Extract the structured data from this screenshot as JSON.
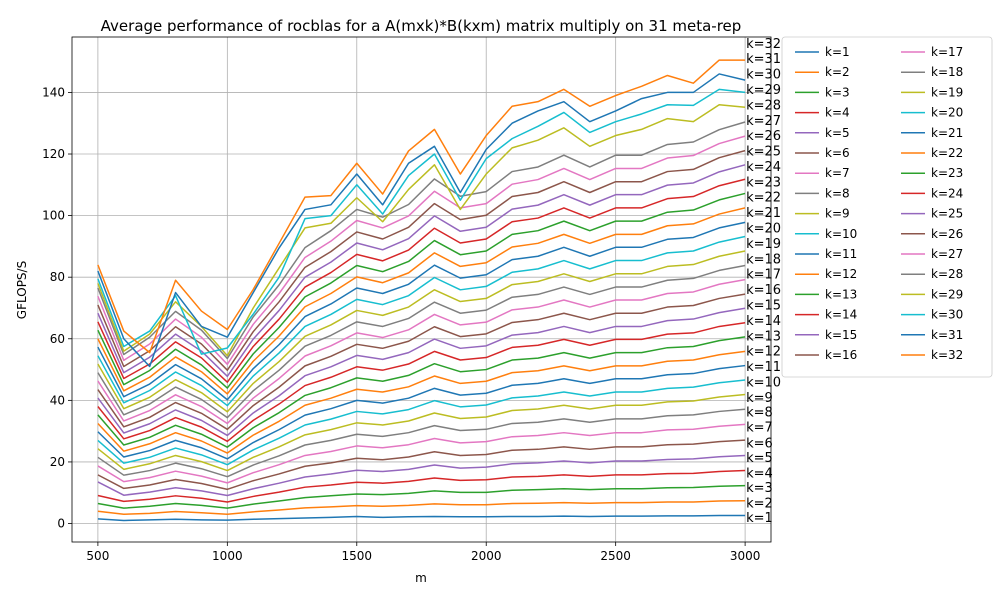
{
  "chart_data": {
    "type": "line",
    "title": "Average performance of rocblas for a A(mxk)*B(kxm) matrix multiply on 31 meta-rep",
    "xlabel": "m",
    "ylabel": "GFLOPS/S",
    "xlim": [
      400,
      3100
    ],
    "ylim": [
      -6,
      158
    ],
    "xticks": [
      500,
      1000,
      1500,
      2000,
      2500,
      3000
    ],
    "yticks": [
      0,
      20,
      40,
      60,
      80,
      100,
      120,
      140
    ],
    "grid": true,
    "legend_position": "outside-right",
    "legend_columns": 2,
    "x": [
      500,
      600,
      700,
      800,
      900,
      1000,
      1100,
      1200,
      1300,
      1400,
      1500,
      1600,
      1700,
      1800,
      1900,
      2000,
      2100,
      2200,
      2300,
      2400,
      2500,
      2600,
      2700,
      2800,
      2900,
      3000
    ],
    "palette": [
      "#1f77b4",
      "#ff7f0e",
      "#2ca02c",
      "#d62728",
      "#9467bd",
      "#8c564b",
      "#e377c2",
      "#7f7f7f",
      "#bcbd22",
      "#17becf"
    ],
    "end_labels": [
      "k=1",
      "k=2",
      "k=3",
      "k=4",
      "k=5",
      "k=6",
      "k=7",
      "k=8",
      "k=9",
      "k=10",
      "k=11",
      "k=12",
      "k=13",
      "k=14",
      "k=15",
      "k=16",
      "k=17",
      "k=18",
      "k=19",
      "k=20",
      "k=21",
      "k=22",
      "k=23",
      "k=24",
      "k=25",
      "k=26",
      "k=27",
      "k=28",
      "k=29",
      "k=30",
      "k=31",
      "k=32"
    ],
    "end_label_y": [
      1.8,
      6.5,
      11.5,
      16.2,
      21.3,
      26.0,
      31.2,
      36.0,
      40.8,
      45.8,
      50.8,
      55.8,
      60.8,
      65.8,
      70.8,
      75.8,
      80.8,
      85.8,
      90.8,
      95.8,
      100.8,
      105.8,
      110.8,
      115.8,
      120.8,
      125.8,
      130.8,
      135.8,
      140.8,
      145.8,
      150.8,
      155.8
    ],
    "series": [
      {
        "name": "k=1",
        "values": [
          1.5,
          1.0,
          1.2,
          1.4,
          1.2,
          1.1,
          1.4,
          1.6,
          1.8,
          2.0,
          2.3,
          2.0,
          2.2,
          2.3,
          2.2,
          2.2,
          2.3,
          2.3,
          2.4,
          2.3,
          2.4,
          2.4,
          2.5,
          2.5,
          2.6,
          2.6
        ]
      },
      {
        "name": "k=2",
        "values": [
          4.0,
          3.0,
          3.3,
          3.9,
          3.5,
          3.0,
          3.8,
          4.4,
          5.1,
          5.4,
          5.8,
          5.6,
          5.9,
          6.4,
          6.1,
          6.1,
          6.5,
          6.6,
          6.8,
          6.6,
          6.8,
          6.8,
          7.0,
          7.0,
          7.3,
          7.4
        ]
      },
      {
        "name": "k=3",
        "values": [
          6.5,
          5.0,
          5.6,
          6.5,
          5.9,
          5.0,
          6.3,
          7.3,
          8.4,
          9.0,
          9.6,
          9.4,
          9.8,
          10.6,
          10.1,
          10.1,
          10.8,
          11.0,
          11.3,
          11.0,
          11.3,
          11.3,
          11.6,
          11.7,
          12.1,
          12.3
        ]
      },
      {
        "name": "k=4",
        "values": [
          9.1,
          7.2,
          7.9,
          9.0,
          8.2,
          7.0,
          8.8,
          10.2,
          11.8,
          12.5,
          13.4,
          13.1,
          13.7,
          14.8,
          14.0,
          14.2,
          15.1,
          15.3,
          15.8,
          15.3,
          15.8,
          15.8,
          16.2,
          16.3,
          16.9,
          17.2
        ]
      },
      {
        "name": "k=5",
        "values": [
          13.5,
          9.2,
          10.2,
          11.6,
          10.6,
          9.1,
          11.3,
          13.1,
          15.1,
          16.1,
          17.3,
          16.9,
          17.6,
          19.0,
          18.0,
          18.3,
          19.4,
          19.7,
          20.3,
          19.7,
          20.3,
          20.3,
          20.8,
          21.0,
          21.7,
          22.1
        ]
      },
      {
        "name": "k=6",
        "values": [
          15.8,
          11.4,
          12.5,
          14.3,
          13.0,
          11.1,
          13.9,
          16.1,
          18.6,
          19.7,
          21.2,
          20.7,
          21.6,
          23.3,
          22.1,
          22.4,
          23.8,
          24.1,
          24.9,
          24.1,
          24.9,
          24.9,
          25.6,
          25.8,
          26.6,
          27.1
        ]
      },
      {
        "name": "k=7",
        "values": [
          18.7,
          13.6,
          14.9,
          17.0,
          15.4,
          13.2,
          16.5,
          19.1,
          22.1,
          23.4,
          25.2,
          24.6,
          25.6,
          27.6,
          26.2,
          26.6,
          28.2,
          28.6,
          29.5,
          28.6,
          29.5,
          29.5,
          30.4,
          30.6,
          31.6,
          32.2
        ]
      },
      {
        "name": "k=8",
        "values": [
          21.5,
          15.7,
          17.2,
          19.6,
          17.8,
          15.2,
          19.0,
          22.0,
          25.5,
          27.0,
          29.0,
          28.3,
          29.5,
          31.8,
          30.2,
          30.6,
          32.5,
          32.9,
          34.0,
          32.9,
          34.0,
          34.0,
          35.0,
          35.3,
          36.4,
          37.1
        ]
      },
      {
        "name": "k=9",
        "values": [
          24.3,
          17.6,
          19.4,
          22.1,
          20.1,
          17.2,
          21.5,
          24.9,
          28.8,
          30.5,
          32.7,
          32.0,
          33.3,
          35.9,
          34.1,
          34.6,
          36.7,
          37.2,
          38.4,
          37.2,
          38.4,
          38.4,
          39.5,
          39.8,
          41.1,
          41.9
        ]
      },
      {
        "name": "k=10",
        "values": [
          27.0,
          19.6,
          21.5,
          24.5,
          22.3,
          19.1,
          23.9,
          27.7,
          32.0,
          33.9,
          36.4,
          35.6,
          37.0,
          39.9,
          37.9,
          38.5,
          40.8,
          41.4,
          42.7,
          41.4,
          42.7,
          42.7,
          43.9,
          44.3,
          45.7,
          46.6
        ]
      },
      {
        "name": "k=11",
        "values": [
          29.8,
          21.6,
          23.7,
          27.0,
          24.6,
          21.0,
          26.3,
          30.5,
          35.2,
          37.3,
          40.0,
          39.1,
          40.7,
          43.9,
          41.7,
          42.3,
          44.9,
          45.5,
          47.0,
          45.5,
          47.0,
          47.0,
          48.3,
          48.7,
          50.3,
          51.3
        ]
      },
      {
        "name": "k=12",
        "values": [
          32.5,
          23.5,
          25.9,
          29.5,
          26.8,
          22.9,
          28.7,
          33.2,
          38.4,
          40.7,
          43.6,
          42.7,
          44.4,
          47.9,
          45.5,
          46.2,
          49.0,
          49.6,
          51.2,
          49.6,
          51.2,
          51.2,
          52.7,
          53.1,
          54.8,
          55.9
        ]
      },
      {
        "name": "k=13",
        "values": [
          35.3,
          25.5,
          28.0,
          31.9,
          29.0,
          24.8,
          31.1,
          36.0,
          41.6,
          44.1,
          47.3,
          46.2,
          48.1,
          51.9,
          49.3,
          50.0,
          53.1,
          53.7,
          55.5,
          53.7,
          55.5,
          55.5,
          57.1,
          57.5,
          59.4,
          60.6
        ]
      },
      {
        "name": "k=14",
        "values": [
          38.0,
          27.5,
          30.2,
          34.4,
          31.3,
          26.7,
          33.5,
          38.8,
          44.8,
          47.5,
          50.9,
          49.8,
          51.8,
          55.9,
          53.1,
          53.9,
          57.2,
          57.9,
          59.8,
          57.9,
          59.8,
          59.8,
          61.5,
          61.9,
          64.0,
          65.2
        ]
      },
      {
        "name": "k=15",
        "values": [
          40.8,
          29.4,
          32.4,
          36.9,
          33.5,
          28.6,
          35.9,
          41.5,
          48.0,
          50.9,
          54.6,
          53.3,
          55.5,
          59.9,
          56.9,
          57.7,
          61.2,
          62.0,
          64.0,
          62.0,
          64.0,
          64.0,
          65.9,
          66.4,
          68.5,
          69.9
        ]
      },
      {
        "name": "k=16",
        "values": [
          43.5,
          31.4,
          34.5,
          39.3,
          35.8,
          30.6,
          38.3,
          44.3,
          51.2,
          54.3,
          58.2,
          56.9,
          59.2,
          63.9,
          60.7,
          61.6,
          65.3,
          66.2,
          68.3,
          66.2,
          68.3,
          68.3,
          70.3,
          70.8,
          73.1,
          74.5
        ]
      },
      {
        "name": "k=17",
        "values": [
          46.3,
          33.3,
          36.7,
          41.8,
          38.0,
          32.5,
          40.7,
          47.1,
          54.4,
          57.7,
          61.9,
          60.4,
          62.9,
          67.9,
          64.5,
          65.4,
          69.4,
          70.3,
          72.6,
          70.3,
          72.6,
          72.6,
          74.7,
          75.2,
          77.7,
          79.2
        ]
      },
      {
        "name": "k=18",
        "values": [
          49.0,
          35.3,
          38.8,
          44.3,
          40.3,
          34.4,
          43.1,
          49.8,
          57.6,
          61.1,
          65.5,
          64.0,
          66.6,
          71.9,
          68.3,
          69.3,
          73.5,
          74.4,
          76.8,
          74.4,
          76.8,
          76.8,
          79.0,
          79.6,
          82.2,
          83.8
        ]
      },
      {
        "name": "k=19",
        "values": [
          51.8,
          37.3,
          41.0,
          46.7,
          42.5,
          36.3,
          45.5,
          52.6,
          60.8,
          64.5,
          69.2,
          67.6,
          70.3,
          75.9,
          72.1,
          73.1,
          77.6,
          78.6,
          81.1,
          78.6,
          81.1,
          81.1,
          83.5,
          84.1,
          86.8,
          88.5
        ]
      },
      {
        "name": "k=20",
        "values": [
          54.5,
          39.2,
          43.2,
          49.2,
          44.8,
          38.3,
          47.9,
          55.4,
          64.0,
          67.9,
          72.8,
          71.1,
          74.0,
          79.9,
          75.9,
          77.0,
          81.6,
          82.7,
          85.4,
          82.7,
          85.4,
          85.4,
          87.9,
          88.5,
          91.4,
          93.2
        ]
      },
      {
        "name": "k=21",
        "values": [
          57.3,
          41.2,
          45.3,
          51.6,
          47.0,
          40.2,
          50.3,
          58.1,
          67.2,
          71.3,
          76.5,
          74.7,
          77.7,
          83.9,
          79.7,
          80.8,
          85.7,
          86.8,
          89.7,
          86.8,
          89.7,
          89.7,
          92.3,
          92.9,
          96.0,
          97.8
        ]
      },
      {
        "name": "k=22",
        "values": [
          60.0,
          43.1,
          47.5,
          54.1,
          49.3,
          42.1,
          52.7,
          60.9,
          70.4,
          74.7,
          80.1,
          78.2,
          81.4,
          87.9,
          83.5,
          84.7,
          89.8,
          91.0,
          93.9,
          91.0,
          93.9,
          93.9,
          96.7,
          97.3,
          100.5,
          102.5
        ]
      },
      {
        "name": "k=23",
        "values": [
          62.8,
          45.1,
          49.7,
          56.6,
          51.5,
          44.0,
          55.1,
          63.7,
          73.6,
          78.1,
          83.8,
          81.8,
          85.1,
          91.9,
          87.3,
          88.5,
          93.9,
          95.1,
          98.2,
          95.1,
          98.2,
          98.2,
          101.1,
          101.8,
          105.1,
          107.2
        ]
      },
      {
        "name": "k=24",
        "values": [
          65.5,
          47.1,
          51.8,
          59.0,
          53.8,
          45.9,
          57.5,
          66.4,
          76.8,
          81.5,
          87.4,
          85.3,
          88.8,
          95.9,
          91.1,
          92.4,
          98.0,
          99.2,
          102.5,
          99.2,
          102.5,
          102.5,
          105.5,
          106.2,
          109.7,
          111.8
        ]
      },
      {
        "name": "k=25",
        "values": [
          68.3,
          49.0,
          54.0,
          61.5,
          56.0,
          47.8,
          59.9,
          69.2,
          80.0,
          84.9,
          91.1,
          88.9,
          92.5,
          99.9,
          94.9,
          96.2,
          102.1,
          103.4,
          106.8,
          103.4,
          106.8,
          106.8,
          109.9,
          110.6,
          114.2,
          116.5
        ]
      },
      {
        "name": "k=26",
        "values": [
          71.0,
          51.0,
          56.1,
          63.9,
          58.3,
          49.8,
          62.3,
          72.0,
          83.2,
          88.3,
          94.7,
          92.4,
          96.2,
          103.9,
          98.7,
          100.1,
          106.2,
          107.5,
          111.0,
          107.5,
          111.0,
          111.0,
          114.3,
          115.0,
          118.8,
          121.1
        ]
      },
      {
        "name": "k=27",
        "values": [
          73.8,
          53.0,
          58.3,
          66.4,
          60.5,
          51.7,
          64.7,
          74.7,
          86.4,
          91.7,
          98.4,
          96.0,
          99.9,
          107.9,
          102.5,
          103.9,
          110.2,
          111.7,
          115.3,
          111.7,
          115.3,
          115.3,
          118.7,
          119.5,
          123.4,
          125.8
        ]
      },
      {
        "name": "k=28",
        "values": [
          76.5,
          54.9,
          60.5,
          68.9,
          62.8,
          53.6,
          67.1,
          77.5,
          89.6,
          95.1,
          102.0,
          99.5,
          103.6,
          111.9,
          106.3,
          107.8,
          114.3,
          115.8,
          119.6,
          115.8,
          119.6,
          119.6,
          123.1,
          123.9,
          127.9,
          130.4
        ]
      },
      {
        "name": "k=29",
        "values": [
          78.0,
          56.0,
          61.5,
          72.0,
          64.0,
          54.5,
          70.0,
          83.0,
          96.0,
          97.5,
          105.8,
          98.0,
          108.5,
          116.5,
          102.0,
          113.5,
          122.0,
          124.5,
          128.5,
          122.5,
          126.0,
          128.0,
          131.5,
          130.5,
          136.0,
          135.2
        ]
      },
      {
        "name": "k=30",
        "values": [
          79.5,
          57.5,
          62.5,
          74.0,
          55.0,
          57.0,
          68.0,
          80.0,
          99.0,
          100.0,
          110.0,
          100.5,
          113.0,
          120.0,
          105.0,
          118.5,
          125.0,
          129.0,
          133.5,
          127.0,
          130.5,
          133.0,
          136.0,
          135.8,
          141.0,
          140.0
        ]
      },
      {
        "name": "k=31",
        "values": [
          82.0,
          60.0,
          51.0,
          75.0,
          64.0,
          60.5,
          75.0,
          89.5,
          102.0,
          103.5,
          113.5,
          103.5,
          117.0,
          122.5,
          107.5,
          121.5,
          130.0,
          134.0,
          137.0,
          130.5,
          134.0,
          138.0,
          140.0,
          140.0,
          146.0,
          144.0
        ]
      },
      {
        "name": "k=32",
        "values": [
          84.0,
          62.5,
          55.5,
          79.0,
          69.0,
          63.0,
          76.0,
          91.0,
          106.0,
          106.5,
          117.0,
          107.0,
          121.0,
          128.0,
          113.5,
          126.0,
          135.5,
          137.0,
          141.0,
          135.5,
          139.0,
          142.0,
          145.5,
          143.0,
          150.5,
          150.5
        ]
      }
    ]
  }
}
